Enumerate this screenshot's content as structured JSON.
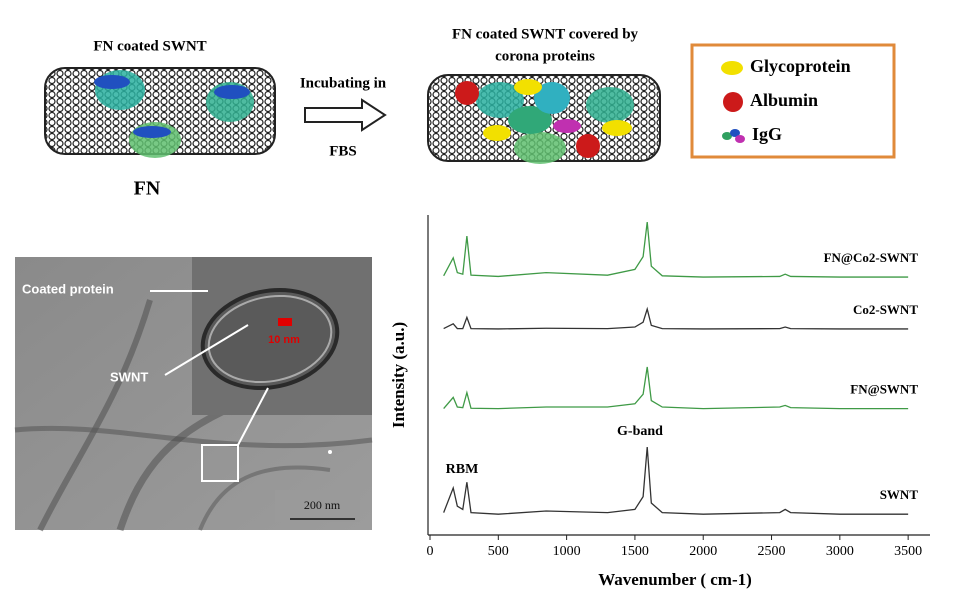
{
  "diagram": {
    "left_title": "FN coated SWNT",
    "left_label": "FN",
    "arrow_top": "Incubating in",
    "arrow_bottom": "FBS",
    "right_title": [
      "FN coated SWNT covered by",
      "corona proteins"
    ],
    "legend": [
      "Glycoprotein",
      "Albumin",
      "IgG"
    ]
  },
  "micrograph": {
    "labels": [
      "Coated protein",
      "SWNT"
    ],
    "inset_scale": "10 nm",
    "scale_bar": "200 nm"
  },
  "chart_data": {
    "type": "line",
    "x_label": "Wavenumber ( cm-1)",
    "y_label": "Intensity (a.u.)",
    "annotations": [
      "RBM",
      "G-band"
    ],
    "x": [
      100,
      170,
      200,
      240,
      270,
      300,
      500,
      850,
      1300,
      1500,
      1560,
      1590,
      1620,
      1700,
      2000,
      2560,
      2600,
      2640,
      3000,
      3500
    ],
    "series": [
      {
        "name": "SWNT",
        "color": "#333333",
        "values": [
          0.7,
          1.47,
          0.9,
          0.8,
          1.65,
          0.7,
          0.65,
          0.75,
          0.7,
          0.8,
          1.2,
          2.75,
          1.0,
          0.7,
          0.65,
          0.7,
          0.8,
          0.7,
          0.65,
          0.65
        ]
      },
      {
        "name": "FN@SWNT",
        "color": "#3f9a46",
        "values": [
          3.95,
          4.3,
          4.0,
          3.98,
          4.45,
          3.96,
          3.95,
          4.0,
          4.0,
          4.1,
          4.4,
          5.25,
          4.2,
          4.0,
          3.95,
          4.0,
          4.05,
          3.98,
          3.95,
          3.95
        ]
      },
      {
        "name": "Co2-SWNT",
        "color": "#333333",
        "values": [
          6.45,
          6.6,
          6.45,
          6.45,
          6.8,
          6.45,
          6.44,
          6.46,
          6.45,
          6.5,
          6.65,
          7.06,
          6.55,
          6.45,
          6.44,
          6.45,
          6.5,
          6.45,
          6.44,
          6.44
        ]
      },
      {
        "name": "FN@Co2-SWNT",
        "color": "#3f9a46",
        "values": [
          8.1,
          8.66,
          8.2,
          8.15,
          9.34,
          8.12,
          8.08,
          8.2,
          8.12,
          8.3,
          8.7,
          9.78,
          8.4,
          8.1,
          8.06,
          8.08,
          8.15,
          8.08,
          8.06,
          8.06
        ]
      }
    ],
    "xlim": [
      0,
      3660
    ],
    "ylim": [
      0,
      10
    ],
    "xticks": [
      0,
      500,
      1000,
      1500,
      2000,
      2500,
      3000,
      3500
    ]
  }
}
